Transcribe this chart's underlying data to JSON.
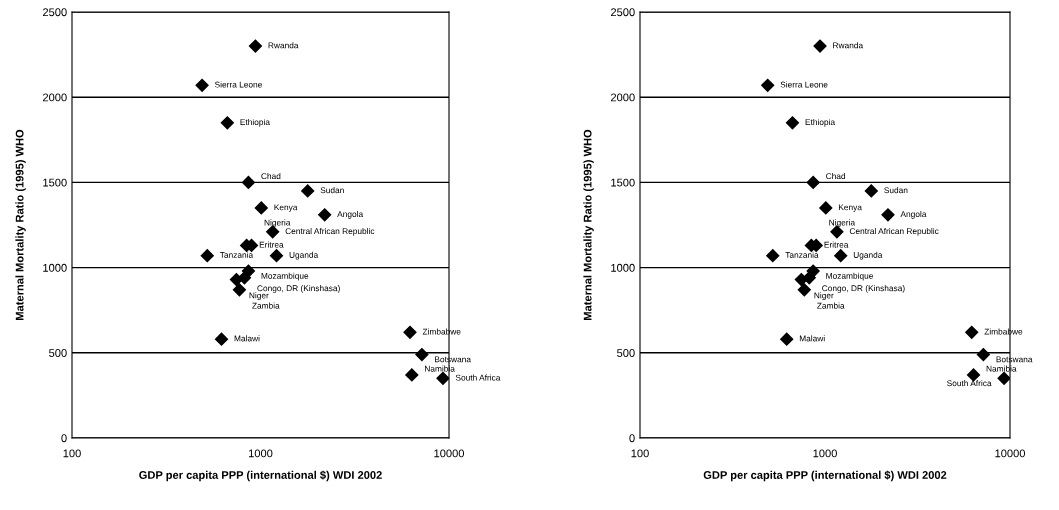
{
  "chart_data": [
    {
      "type": "scatter",
      "xlabel": "GDP per capita PPP (international $) WDI 2002",
      "ylabel": "Maternal Mortality Ratio (1995) WHO",
      "log": "x",
      "xlim": [
        100,
        10000
      ],
      "xticks": [
        100,
        1000,
        10000
      ],
      "ylim": [
        0,
        2500
      ],
      "yticks": [
        0,
        500,
        1000,
        1500,
        2000,
        2500
      ],
      "grid": "y",
      "marker": "diamond",
      "series": [
        {
          "color": "#000000",
          "x": [
            940,
            490,
            667,
            863,
            1780,
            1010,
            2190,
            1160,
            844,
            896,
            522,
            1216,
            863,
            822,
            745,
            773,
            621,
            6210,
            7180,
            6350,
            9290
          ],
          "values": [
            2300,
            2070,
            1850,
            1500,
            1450,
            1350,
            1310,
            1210,
            1130,
            1130,
            1070,
            1070,
            980,
            940,
            930,
            870,
            580,
            620,
            490,
            370,
            350
          ]
        }
      ],
      "annotations": [
        {
          "text": "Rwanda",
          "x": 940,
          "y": 2300
        },
        {
          "text": "Sierra Leone",
          "x": 490,
          "y": 2070
        },
        {
          "text": "Ethiopia",
          "x": 667,
          "y": 1850
        },
        {
          "text": "Chad",
          "x": 863,
          "y": 1500
        },
        {
          "text": "Sudan",
          "x": 1780,
          "y": 1450
        },
        {
          "text": "Kenya",
          "x": 1010,
          "y": 1350
        },
        {
          "text": "Angola",
          "x": 2190,
          "y": 1310
        },
        {
          "text": "Central African Republic",
          "x": 1160,
          "y": 1210
        },
        {
          "text": "Eritrea",
          "x": 844,
          "y": 1130
        },
        {
          "text": "Nigeria",
          "x": 896,
          "y": 1130
        },
        {
          "text": "Tanzania",
          "x": 522,
          "y": 1070
        },
        {
          "text": "Uganda",
          "x": 1216,
          "y": 1070
        },
        {
          "text": "Mozambique",
          "x": 863,
          "y": 980
        },
        {
          "text": "Congo, DR (Kinshasa)",
          "x": 822,
          "y": 940
        },
        {
          "text": "Niger",
          "x": 745,
          "y": 930
        },
        {
          "text": "Zambia",
          "x": 773,
          "y": 870
        },
        {
          "text": "Malawi",
          "x": 621,
          "y": 580
        },
        {
          "text": "Zimbabwe",
          "x": 6210,
          "y": 620
        },
        {
          "text": "Botswana",
          "x": 7180,
          "y": 490
        },
        {
          "text": "Namibia",
          "x": 6350,
          "y": 370
        },
        {
          "text": "South Africa",
          "x": 9290,
          "y": 350
        }
      ]
    },
    {
      "type": "scatter",
      "xlabel": "GDP per capita PPP (international $) WDI 2002",
      "ylabel": "Maternal Mortality Ratio (1995) WHO",
      "log": "x",
      "xlim": [
        100,
        10000
      ],
      "xticks": [
        100,
        1000,
        10000
      ],
      "ylim": [
        0,
        2500
      ],
      "yticks": [
        0,
        500,
        1000,
        1500,
        2000,
        2500
      ],
      "grid": "y",
      "marker": "diamond",
      "series": [
        {
          "color": "#000000",
          "x": [
            940,
            490,
            667,
            863,
            1780,
            1010,
            2190,
            1160,
            844,
            896,
            522,
            1216,
            863,
            822,
            745,
            773,
            621,
            6210,
            7180,
            6350,
            9290
          ],
          "values": [
            2300,
            2070,
            1850,
            1500,
            1450,
            1350,
            1310,
            1210,
            1130,
            1130,
            1070,
            1070,
            980,
            940,
            930,
            870,
            580,
            620,
            490,
            370,
            350
          ]
        }
      ],
      "annotations": [
        {
          "text": "Rwanda",
          "x": 940,
          "y": 2300
        },
        {
          "text": "Sierra Leone",
          "x": 490,
          "y": 2070
        },
        {
          "text": "Ethiopia",
          "x": 667,
          "y": 1850
        },
        {
          "text": "Chad",
          "x": 863,
          "y": 1500
        },
        {
          "text": "Sudan",
          "x": 1780,
          "y": 1450
        },
        {
          "text": "Kenya",
          "x": 1010,
          "y": 1350
        },
        {
          "text": "Angola",
          "x": 2190,
          "y": 1310
        },
        {
          "text": "Central African Republic",
          "x": 1160,
          "y": 1210
        },
        {
          "text": "Eritrea",
          "x": 844,
          "y": 1130
        },
        {
          "text": "Nigeria",
          "x": 896,
          "y": 1130
        },
        {
          "text": "Tanzania",
          "x": 522,
          "y": 1070
        },
        {
          "text": "Uganda",
          "x": 1216,
          "y": 1070
        },
        {
          "text": "Mozambique",
          "x": 863,
          "y": 980
        },
        {
          "text": "Congo, DR (Kinshasa)",
          "x": 822,
          "y": 940
        },
        {
          "text": "Niger",
          "x": 745,
          "y": 930
        },
        {
          "text": "Zambia",
          "x": 773,
          "y": 870
        },
        {
          "text": "Malawi",
          "x": 621,
          "y": 580
        },
        {
          "text": "Zimbabwe",
          "x": 6210,
          "y": 620
        },
        {
          "text": "Botswana",
          "x": 7180,
          "y": 490
        },
        {
          "text": "Namibia",
          "x": 6350,
          "y": 370
        },
        {
          "text": "South Africa",
          "x": 9290,
          "y": 350
        }
      ]
    }
  ]
}
